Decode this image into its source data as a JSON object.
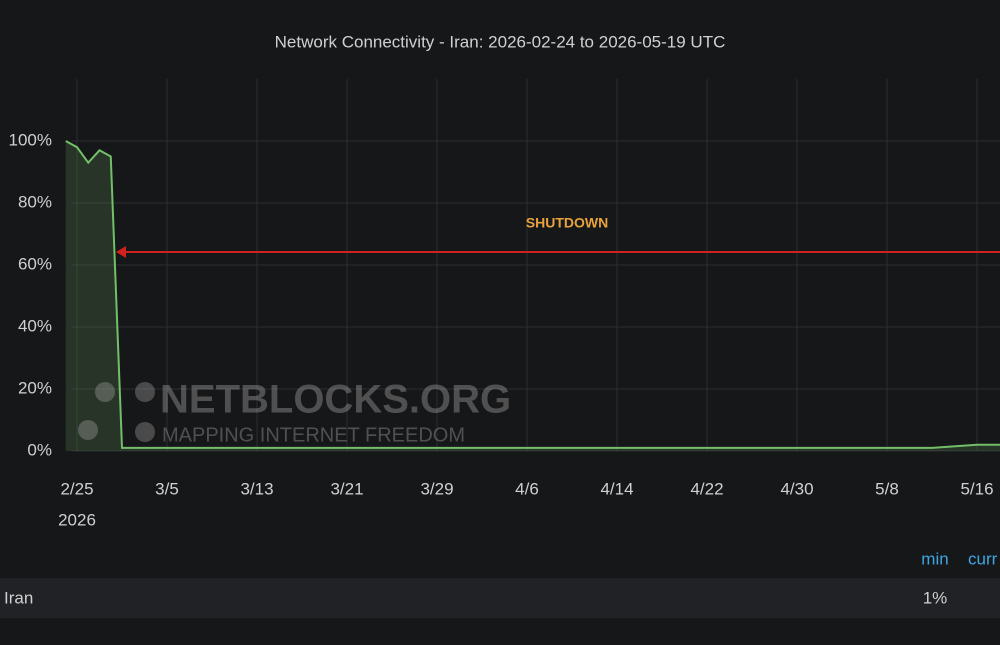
{
  "chart_data": {
    "type": "line",
    "title": "Network Connectivity - Iran: 2026-02-24 to 2026-05-19 UTC",
    "x": [
      "2026-02-24",
      "2026-02-25",
      "2026-02-26",
      "2026-02-27",
      "2026-02-28",
      "2026-03-01",
      "2026-03-05",
      "2026-03-09",
      "2026-03-13",
      "2026-03-17",
      "2026-03-21",
      "2026-03-25",
      "2026-03-29",
      "2026-04-02",
      "2026-04-06",
      "2026-04-10",
      "2026-04-14",
      "2026-04-18",
      "2026-04-22",
      "2026-04-26",
      "2026-04-30",
      "2026-05-04",
      "2026-05-08",
      "2026-05-12",
      "2026-05-16",
      "2026-05-19"
    ],
    "series": [
      {
        "name": "Iran",
        "color": "#73bf69",
        "values": [
          100,
          98,
          93,
          97,
          95,
          1,
          1,
          1,
          1,
          1,
          1,
          1,
          1,
          1,
          1,
          1,
          1,
          1,
          1,
          1,
          1,
          1,
          1,
          1,
          2,
          2
        ]
      }
    ],
    "xlim": [
      "2026-02-24",
      "2026-05-19"
    ],
    "xticks": [
      {
        "value": "2026-02-25",
        "label": "2/25",
        "sublabel": "2026"
      },
      {
        "value": "2026-03-05",
        "label": "3/5"
      },
      {
        "value": "2026-03-13",
        "label": "3/13"
      },
      {
        "value": "2026-03-21",
        "label": "3/21"
      },
      {
        "value": "2026-03-29",
        "label": "3/29"
      },
      {
        "value": "2026-04-06",
        "label": "4/6"
      },
      {
        "value": "2026-04-14",
        "label": "4/14"
      },
      {
        "value": "2026-04-22",
        "label": "4/22"
      },
      {
        "value": "2026-04-30",
        "label": "4/30"
      },
      {
        "value": "2026-05-08",
        "label": "5/8"
      },
      {
        "value": "2026-05-16",
        "label": "5/16"
      }
    ],
    "ylim": [
      0,
      120
    ],
    "yticks": [
      {
        "value": 0,
        "label": "0%"
      },
      {
        "value": 20,
        "label": "20%"
      },
      {
        "value": 40,
        "label": "40%"
      },
      {
        "value": 60,
        "label": "60%"
      },
      {
        "value": 80,
        "label": "80%"
      },
      {
        "value": 100,
        "label": "100%"
      }
    ],
    "grid": true,
    "annotation": {
      "text": "SHUTDOWN",
      "color": "#e8a33a"
    },
    "watermark": {
      "title": "NETBLOCKS.ORG",
      "subtitle": "MAPPING INTERNET FREEDOM"
    },
    "legend_stats": [
      {
        "label": "min",
        "value": "1%"
      },
      {
        "label": "curr"
      }
    ]
  }
}
